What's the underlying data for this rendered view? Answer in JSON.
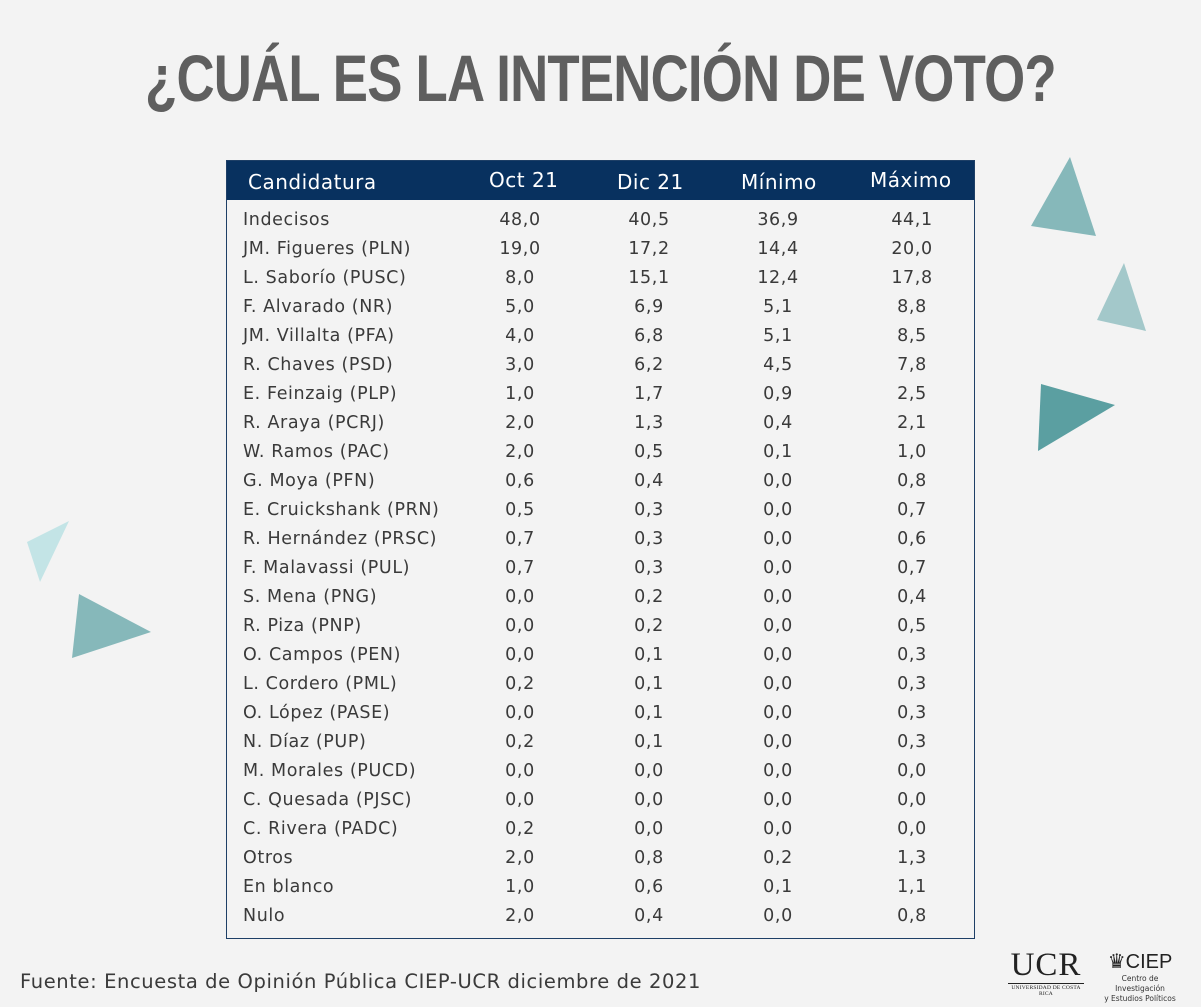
{
  "title": "¿CUÁL ES LA INTENCIÓN DE VOTO?",
  "footer": "Fuente: Encuesta de Opinión Pública CIEP-UCR diciembre de 2021",
  "logos": {
    "ucr": {
      "name": "UCR",
      "sub": "UNIVERSIDAD DE COSTA RICA"
    },
    "ciep": {
      "name": "CIEP",
      "sub1": "Centro de Investigación",
      "sub2": "y Estudios Políticos"
    }
  },
  "colors": {
    "header_bg": "#08315f",
    "background": "#f3f3f3",
    "title": "#5f5f5f",
    "triangles": [
      "#86b8ba",
      "#a3c8ca",
      "#5b9fa1",
      "#c3e4e6",
      "#86b8ba"
    ]
  },
  "chart_data": {
    "type": "table",
    "columns": [
      "Candidatura",
      "Oct 21",
      "Dic 21",
      "Mínimo",
      "Máximo"
    ],
    "rows": [
      [
        "Indecisos",
        "48,0",
        "40,5",
        "36,9",
        "44,1"
      ],
      [
        "JM. Figueres (PLN)",
        "19,0",
        "17,2",
        "14,4",
        "20,0"
      ],
      [
        "L. Saborío (PUSC)",
        "8,0",
        "15,1",
        "12,4",
        "17,8"
      ],
      [
        "F. Alvarado (NR)",
        "5,0",
        "6,9",
        "5,1",
        "8,8"
      ],
      [
        "JM. Villalta (PFA)",
        "4,0",
        "6,8",
        "5,1",
        "8,5"
      ],
      [
        "R. Chaves (PSD)",
        "3,0",
        "6,2",
        "4,5",
        "7,8"
      ],
      [
        "E. Feinzaig (PLP)",
        "1,0",
        "1,7",
        "0,9",
        "2,5"
      ],
      [
        "R. Araya (PCRJ)",
        "2,0",
        "1,3",
        "0,4",
        "2,1"
      ],
      [
        "W. Ramos (PAC)",
        "2,0",
        "0,5",
        "0,1",
        "1,0"
      ],
      [
        "G. Moya (PFN)",
        "0,6",
        "0,4",
        "0,0",
        "0,8"
      ],
      [
        "E. Cruickshank (PRN)",
        "0,5",
        "0,3",
        "0,0",
        "0,7"
      ],
      [
        "R. Hernández (PRSC)",
        "0,7",
        "0,3",
        "0,0",
        "0,6"
      ],
      [
        "F. Malavassi (PUL)",
        "0,7",
        "0,3",
        "0,0",
        "0,7"
      ],
      [
        "S. Mena (PNG)",
        "0,0",
        "0,2",
        "0,0",
        "0,4"
      ],
      [
        "R. Piza (PNP)",
        "0,0",
        "0,2",
        "0,0",
        "0,5"
      ],
      [
        "O. Campos (PEN)",
        "0,0",
        "0,1",
        "0,0",
        "0,3"
      ],
      [
        "L. Cordero (PML)",
        "0,2",
        "0,1",
        "0,0",
        "0,3"
      ],
      [
        "O. López (PASE)",
        "0,0",
        "0,1",
        "0,0",
        "0,3"
      ],
      [
        "N. Díaz (PUP)",
        "0,2",
        "0,1",
        "0,0",
        "0,3"
      ],
      [
        "M. Morales (PUCD)",
        "0,0",
        "0,0",
        "0,0",
        "0,0"
      ],
      [
        "C. Quesada (PJSC)",
        "0,0",
        "0,0",
        "0,0",
        "0,0"
      ],
      [
        "C. Rivera (PADC)",
        "0,2",
        "0,0",
        "0,0",
        "0,0"
      ],
      [
        "Otros",
        "2,0",
        "0,8",
        "0,2",
        "1,3"
      ],
      [
        "En blanco",
        "1,0",
        "0,6",
        "0,1",
        "1,1"
      ],
      [
        "Nulo",
        "2,0",
        "0,4",
        "0,0",
        "0,8"
      ]
    ]
  }
}
